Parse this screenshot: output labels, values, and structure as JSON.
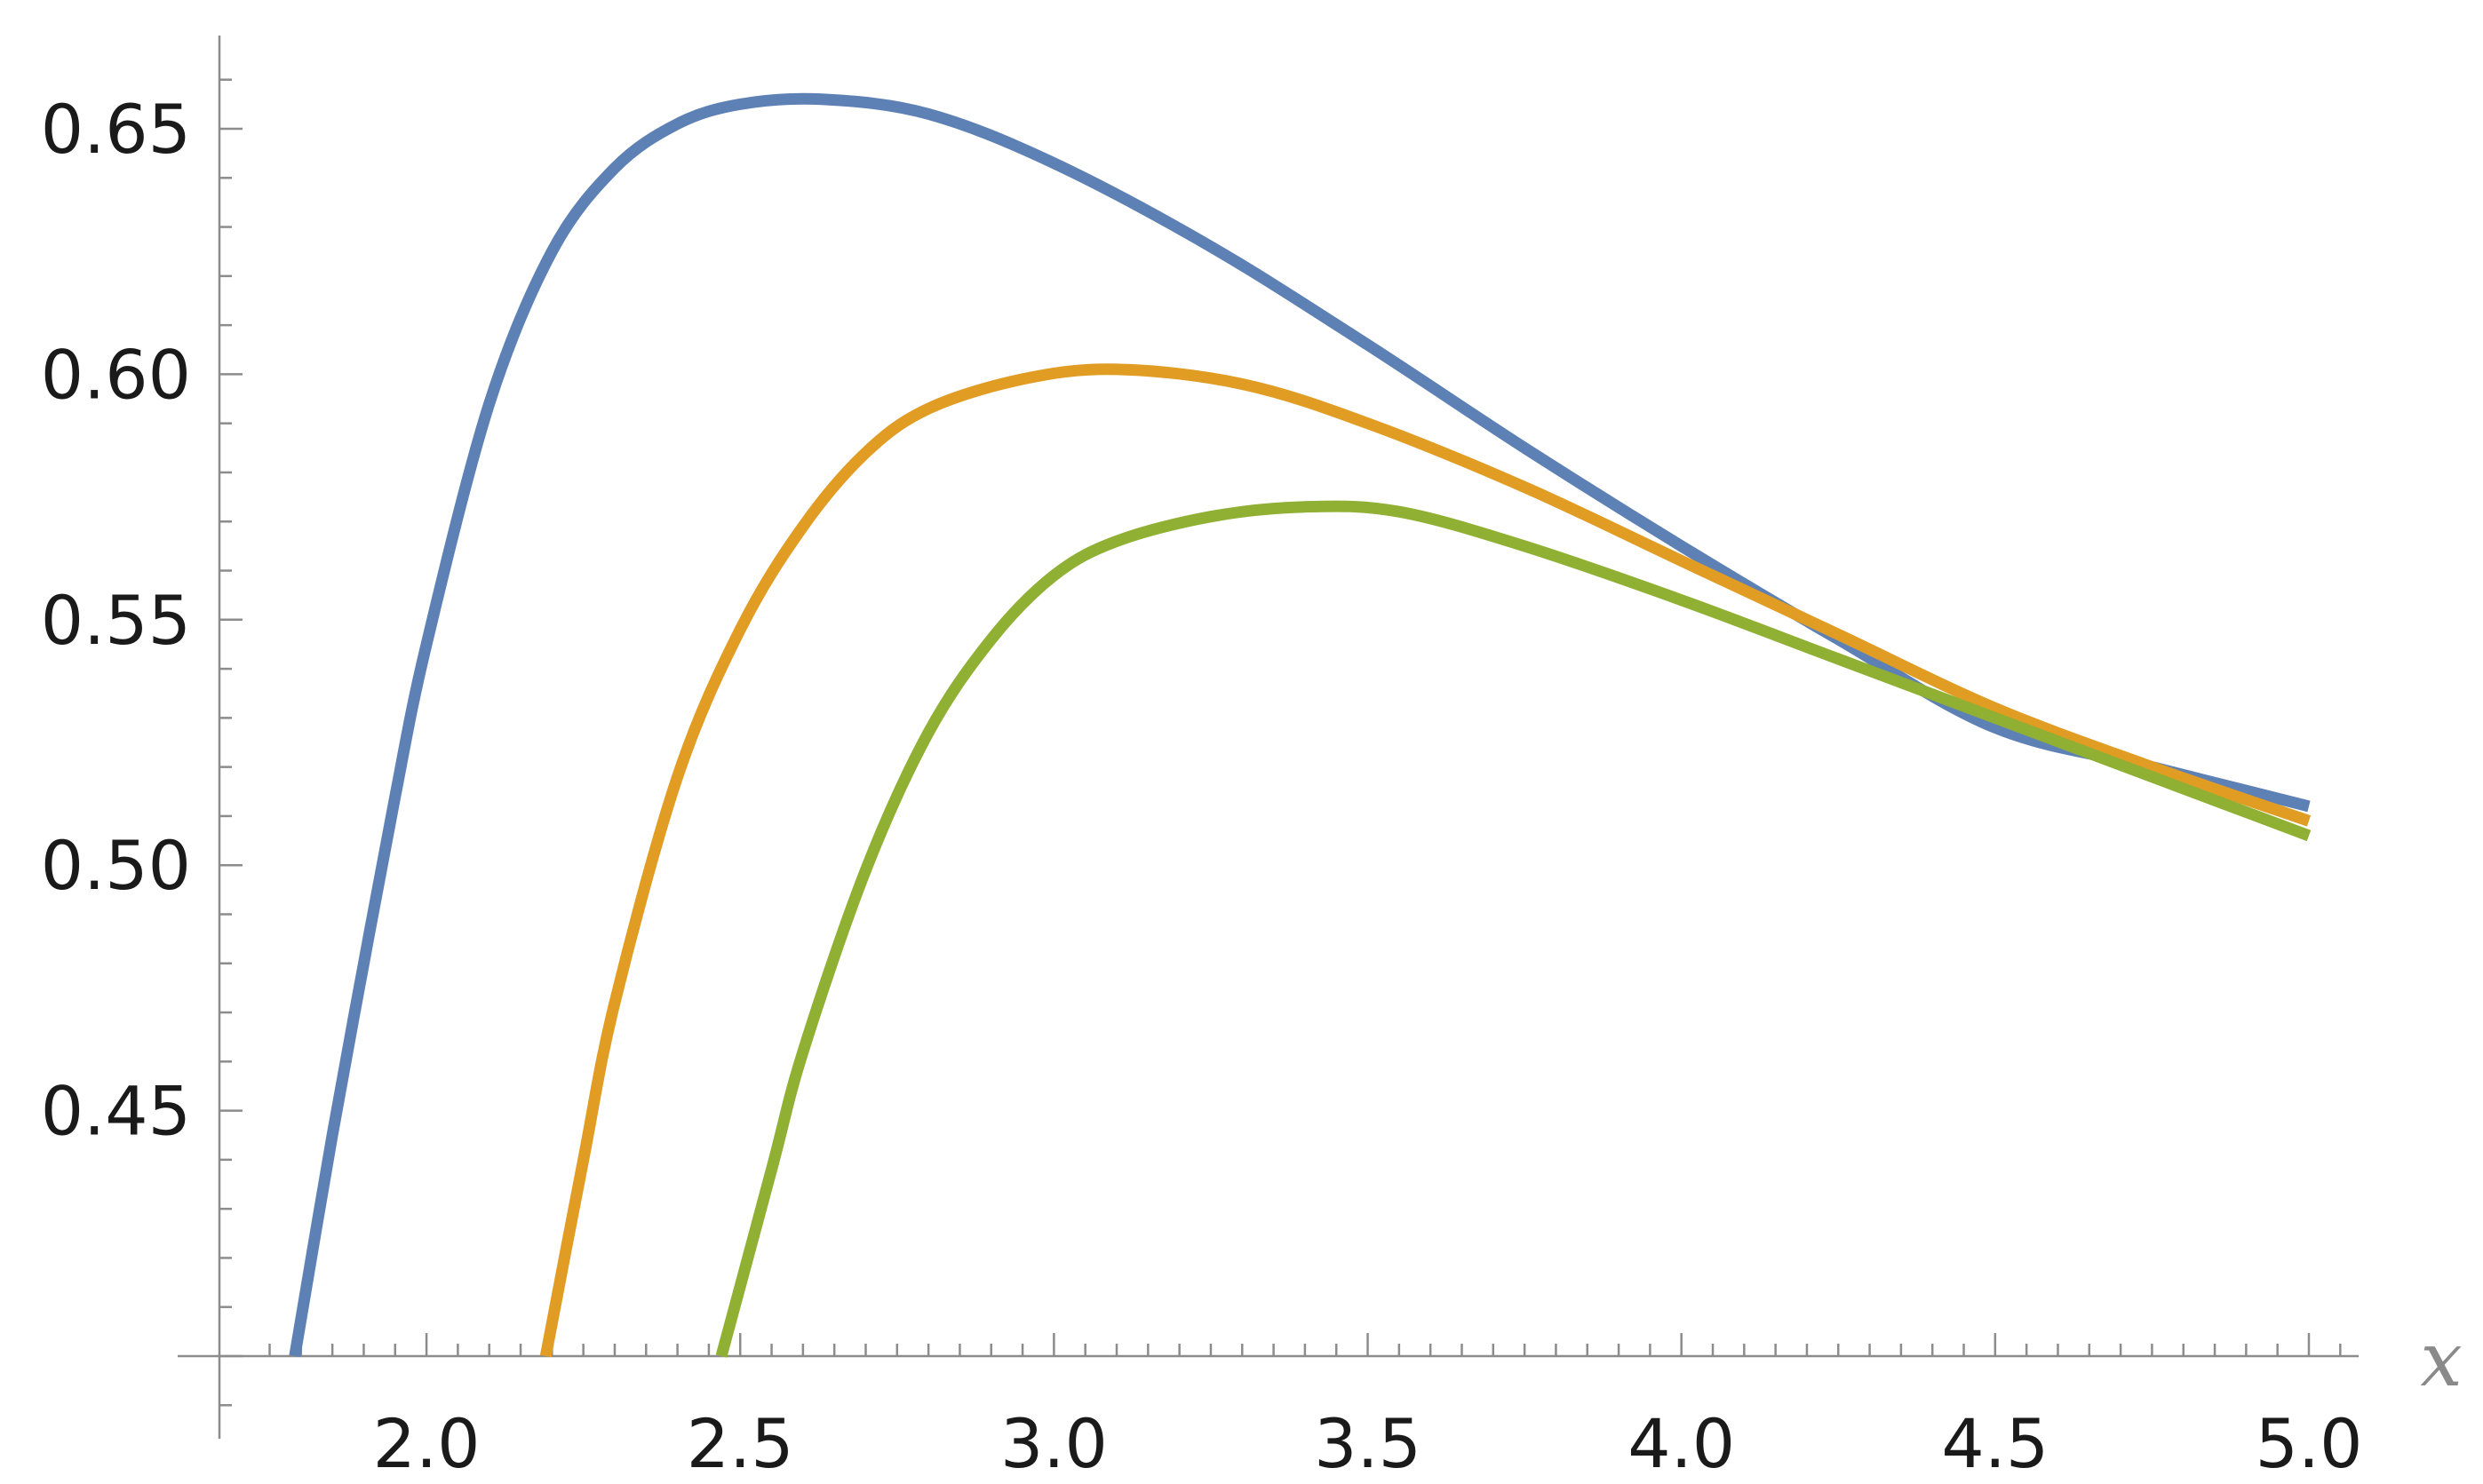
{
  "chart_data": {
    "type": "line",
    "xlabel": "x",
    "ylabel": "",
    "xlim": [
      1.67,
      5.05
    ],
    "ylim": [
      0.38,
      0.672
    ],
    "x_axis_crosses_y_at": 0.4,
    "x_major_ticks": [
      2.0,
      2.5,
      3.0,
      3.5,
      4.0,
      4.5,
      5.0
    ],
    "x_tick_labels": [
      "2.0",
      "2.5",
      "3.0",
      "3.5",
      "4.0",
      "4.5",
      "5.0"
    ],
    "y_major_ticks": [
      0.45,
      0.5,
      0.55,
      0.6,
      0.65
    ],
    "y_tick_labels": [
      "0.45",
      "0.50",
      "0.55",
      "0.60",
      "0.65"
    ],
    "grid": false,
    "legend": "none",
    "series": [
      {
        "color": "#5e81b5",
        "points": [
          [
            1.79,
            0.4
          ],
          [
            1.85,
            0.445
          ],
          [
            1.9,
            0.48
          ],
          [
            1.95,
            0.514
          ],
          [
            2.0,
            0.545
          ],
          [
            2.1,
            0.594
          ],
          [
            2.2,
            0.625
          ],
          [
            2.3,
            0.642
          ],
          [
            2.4,
            0.651
          ],
          [
            2.5,
            0.655
          ],
          [
            2.63,
            0.656
          ],
          [
            2.8,
            0.653
          ],
          [
            3.0,
            0.643
          ],
          [
            3.25,
            0.626
          ],
          [
            3.5,
            0.606
          ],
          [
            3.75,
            0.585
          ],
          [
            4.0,
            0.565
          ],
          [
            4.25,
            0.546
          ],
          [
            4.5,
            0.528
          ],
          [
            4.75,
            0.52
          ],
          [
            5.0,
            0.512
          ]
        ]
      },
      {
        "color": "#e19c24",
        "points": [
          [
            2.19,
            0.4
          ],
          [
            2.25,
            0.44
          ],
          [
            2.3,
            0.472
          ],
          [
            2.4,
            0.518
          ],
          [
            2.5,
            0.548
          ],
          [
            2.6,
            0.569
          ],
          [
            2.7,
            0.584
          ],
          [
            2.8,
            0.593
          ],
          [
            2.95,
            0.599
          ],
          [
            3.1,
            0.601
          ],
          [
            3.3,
            0.598
          ],
          [
            3.5,
            0.59
          ],
          [
            3.75,
            0.577
          ],
          [
            4.0,
            0.562
          ],
          [
            4.25,
            0.547
          ],
          [
            4.5,
            0.532
          ],
          [
            4.75,
            0.52
          ],
          [
            5.0,
            0.509
          ]
        ]
      },
      {
        "color": "#8fb032",
        "points": [
          [
            2.47,
            0.4
          ],
          [
            2.55,
            0.438
          ],
          [
            2.6,
            0.462
          ],
          [
            2.7,
            0.499
          ],
          [
            2.8,
            0.527
          ],
          [
            2.9,
            0.546
          ],
          [
            3.0,
            0.559
          ],
          [
            3.1,
            0.566
          ],
          [
            3.25,
            0.571
          ],
          [
            3.4,
            0.573
          ],
          [
            3.55,
            0.572
          ],
          [
            3.75,
            0.565
          ],
          [
            4.0,
            0.554
          ],
          [
            4.25,
            0.542
          ],
          [
            4.5,
            0.53
          ],
          [
            4.75,
            0.518
          ],
          [
            5.0,
            0.506
          ]
        ]
      }
    ]
  }
}
